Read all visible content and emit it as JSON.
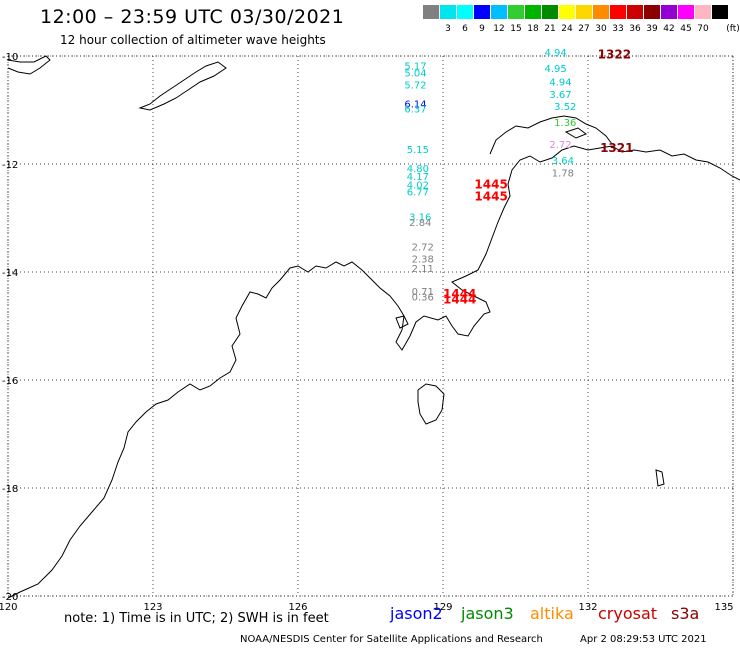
{
  "header": {
    "title": "12:00 – 23:59 UTC 03/30/2021",
    "subtitle": "12 hour collection of altimeter wave heights"
  },
  "scale": {
    "unit_label": "(ft)",
    "swatches": [
      {
        "color": "#808080",
        "label": ""
      },
      {
        "color": "#00e5ee",
        "label": "3"
      },
      {
        "color": "#00ffff",
        "label": "6"
      },
      {
        "color": "#0000ff",
        "label": "9"
      },
      {
        "color": "#00bfff",
        "label": "12"
      },
      {
        "color": "#32cd32",
        "label": "15"
      },
      {
        "color": "#00b400",
        "label": "18"
      },
      {
        "color": "#008b00",
        "label": "21"
      },
      {
        "color": "#ffff00",
        "label": "24"
      },
      {
        "color": "#ffd700",
        "label": "27"
      },
      {
        "color": "#ff8c00",
        "label": "30"
      },
      {
        "color": "#ff0000",
        "label": "33"
      },
      {
        "color": "#cd0000",
        "label": "36"
      },
      {
        "color": "#8b0000",
        "label": "39"
      },
      {
        "color": "#9400d3",
        "label": "42"
      },
      {
        "color": "#ff00ff",
        "label": "45"
      },
      {
        "color": "#ffb6c1",
        "label": "70"
      },
      {
        "color": "#000000",
        "label": ""
      }
    ]
  },
  "axes": {
    "lat_labels": [
      "-10",
      "-12",
      "-14",
      "-16",
      "-18",
      "-20"
    ],
    "lon_labels": [
      "120",
      "123",
      "126",
      "129",
      "132",
      "135"
    ]
  },
  "observations": [
    {
      "lon": 128.2,
      "lat": -10.25,
      "text": "5.17",
      "color": "#00cccc"
    },
    {
      "lon": 128.2,
      "lat": -10.38,
      "text": "5.04",
      "color": "#00cccc"
    },
    {
      "lon": 128.2,
      "lat": -10.6,
      "text": "5.72",
      "color": "#00cccc"
    },
    {
      "lon": 128.2,
      "lat": -10.95,
      "text": "6.14",
      "color": "#0000ff"
    },
    {
      "lon": 128.2,
      "lat": -11.05,
      "text": "6.37",
      "color": "#00cccc"
    },
    {
      "lon": 128.25,
      "lat": -11.8,
      "text": "5.15",
      "color": "#00cccc"
    },
    {
      "lon": 128.25,
      "lat": -12.15,
      "text": "4.80",
      "color": "#00cccc"
    },
    {
      "lon": 128.25,
      "lat": -12.3,
      "text": "4.17",
      "color": "#00cccc"
    },
    {
      "lon": 128.25,
      "lat": -12.45,
      "text": "4.02",
      "color": "#00cccc"
    },
    {
      "lon": 128.25,
      "lat": -12.58,
      "text": "6.77",
      "color": "#00cccc"
    },
    {
      "lon": 128.3,
      "lat": -13.05,
      "text": "3.16",
      "color": "#00cccc"
    },
    {
      "lon": 128.3,
      "lat": -13.15,
      "text": "2.84",
      "color": "#808080"
    },
    {
      "lon": 128.35,
      "lat": -13.6,
      "text": "2.72",
      "color": "#808080"
    },
    {
      "lon": 128.35,
      "lat": -13.82,
      "text": "2.38",
      "color": "#808080"
    },
    {
      "lon": 128.35,
      "lat": -14.0,
      "text": "2.11",
      "color": "#808080"
    },
    {
      "lon": 128.35,
      "lat": -14.43,
      "text": "0.71",
      "color": "#808080"
    },
    {
      "lon": 128.35,
      "lat": -14.53,
      "text": "0.36",
      "color": "#808080"
    },
    {
      "lon": 131.1,
      "lat": -10.0,
      "text": "4.94",
      "color": "#00cccc"
    },
    {
      "lon": 131.1,
      "lat": -10.3,
      "text": "4.95",
      "color": "#00cccc"
    },
    {
      "lon": 131.2,
      "lat": -10.55,
      "text": "4.94",
      "color": "#00cccc"
    },
    {
      "lon": 131.2,
      "lat": -10.78,
      "text": "3.67",
      "color": "#00cccc"
    },
    {
      "lon": 131.3,
      "lat": -11.0,
      "text": "3.52",
      "color": "#00cccc"
    },
    {
      "lon": 131.3,
      "lat": -11.3,
      "text": "1.36",
      "color": "#32cd32"
    },
    {
      "lon": 131.2,
      "lat": -11.7,
      "text": "2.72",
      "color": "#dd88dd"
    },
    {
      "lon": 131.25,
      "lat": -12.0,
      "text": "3.64",
      "color": "#00cccc"
    },
    {
      "lon": 131.25,
      "lat": -12.23,
      "text": "1.78",
      "color": "#808080"
    }
  ],
  "times": [
    {
      "lon": 129.65,
      "lat": -12.45,
      "text": "1445",
      "color": "#ff0000"
    },
    {
      "lon": 129.65,
      "lat": -12.68,
      "text": "1445",
      "color": "#ff0000"
    },
    {
      "lon": 129.0,
      "lat": -14.48,
      "text": "1444",
      "color": "#ff0000"
    },
    {
      "lon": 129.0,
      "lat": -14.58,
      "text": "1444",
      "color": "#ff0000"
    },
    {
      "lon": 132.2,
      "lat": -10.05,
      "text": "1322",
      "color": "#8b0000"
    },
    {
      "lon": 132.25,
      "lat": -11.78,
      "text": "1321",
      "color": "#8b0000"
    }
  ],
  "footer": {
    "note": "note: 1) Time is in UTC; 2) SWH is in feet",
    "satellites": [
      {
        "name": "jason2",
        "color": "#0000ff"
      },
      {
        "name": "jason3",
        "color": "#008b00"
      },
      {
        "name": "altika",
        "color": "#ff8c00"
      },
      {
        "name": "cryosat",
        "color": "#cc0000"
      },
      {
        "name": "s3a",
        "color": "#8b0000"
      }
    ],
    "credit": "NOAA/NESDIS Center for Satellite Applications and Research",
    "timestamp": "Apr 2 08:29:53 UTC 2021"
  }
}
